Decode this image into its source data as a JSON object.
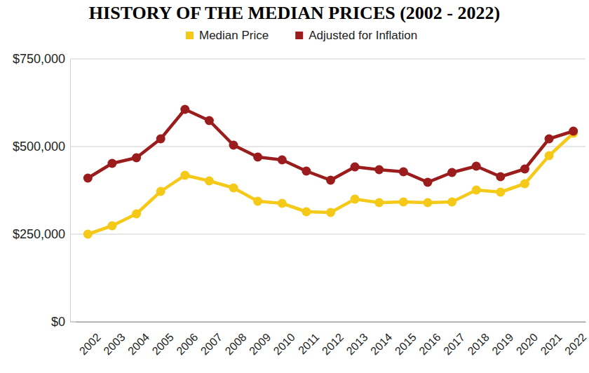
{
  "chart_data": {
    "type": "line",
    "title": "HISTORY OF THE MEDIAN PRICES (2002 - 2022)",
    "categories": [
      "2002",
      "2003",
      "2004",
      "2005",
      "2006",
      "2007",
      "2008",
      "2009",
      "2010",
      "2011",
      "2012",
      "2013",
      "2014",
      "2015",
      "2016",
      "2017",
      "2018",
      "2019",
      "2020",
      "2021",
      "2022"
    ],
    "series": [
      {
        "name": "Median Price",
        "color": "#f4c918",
        "marker": "circle",
        "values": [
          250000,
          274000,
          308000,
          372000,
          418000,
          402000,
          382000,
          344000,
          338000,
          314000,
          312000,
          350000,
          340000,
          342000,
          340000,
          342000,
          376000,
          370000,
          394000,
          474000,
          538000
        ]
      },
      {
        "name": "Adjusted for Inflation",
        "color": "#9b1c1c",
        "marker": "circle",
        "values": [
          410000,
          452000,
          468000,
          522000,
          606000,
          574000,
          504000,
          470000,
          462000,
          430000,
          404000,
          442000,
          434000,
          428000,
          398000,
          426000,
          444000,
          414000,
          436000,
          522000,
          544000
        ]
      }
    ],
    "ylim": [
      0,
      750000
    ],
    "yticks": [
      {
        "value": 0,
        "label": "$0"
      },
      {
        "value": 250000,
        "label": "$250,000"
      },
      {
        "value": 500000,
        "label": "$500,000"
      },
      {
        "value": 750000,
        "label": "$750,000"
      }
    ],
    "grid": true,
    "legend": "top"
  }
}
